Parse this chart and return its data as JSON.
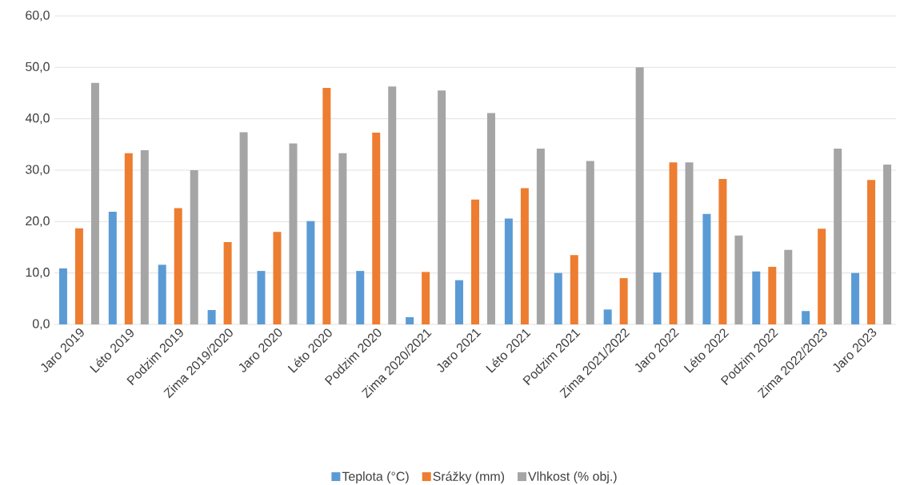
{
  "chart_data": {
    "type": "bar",
    "categories": [
      "Jaro 2019",
      "Léto 2019",
      "Podzim 2019",
      "Zima 2019/2020",
      "Jaro 2020",
      "Léto 2020",
      "Podzim 2020",
      "Zima 2020/2021",
      "Jaro 2021",
      "Léto 2021",
      "Podzim 2021",
      "Zima 2021/2022",
      "Jaro 2022",
      "Léto 2022",
      "Podzim 2022",
      "Zima 2022/2023",
      "Jaro 2023"
    ],
    "series": [
      {
        "name": "Teplota (°C)",
        "color": "#5b9bd5",
        "values": [
          10.9,
          21.9,
          11.6,
          2.8,
          10.4,
          20.1,
          10.4,
          1.4,
          8.6,
          20.6,
          10.0,
          2.9,
          10.1,
          21.5,
          10.3,
          2.6,
          10.0
        ]
      },
      {
        "name": "Srážky (mm)",
        "color": "#ed7d31",
        "values": [
          18.7,
          33.3,
          22.6,
          16.0,
          18.0,
          46.0,
          37.3,
          10.2,
          24.3,
          26.5,
          13.5,
          9.0,
          31.5,
          28.3,
          11.2,
          18.6,
          28.1
        ]
      },
      {
        "name": "Vlhkost (% obj.)",
        "color": "#a5a5a5",
        "values": [
          47.0,
          33.9,
          30.0,
          37.4,
          35.2,
          33.3,
          46.3,
          45.5,
          41.1,
          34.2,
          31.8,
          50.0,
          31.5,
          17.3,
          14.5,
          34.2,
          31.1
        ]
      }
    ],
    "ylim": [
      0,
      60
    ],
    "yticks": [
      {
        "value": 0,
        "label": "0,0"
      },
      {
        "value": 10,
        "label": "10,0"
      },
      {
        "value": 20,
        "label": "20,0"
      },
      {
        "value": 30,
        "label": "30,0"
      },
      {
        "value": 40,
        "label": "40,0"
      },
      {
        "value": 50,
        "label": "50,0"
      },
      {
        "value": 60,
        "label": "60,0"
      }
    ],
    "grid": "y",
    "legend": "bottom"
  }
}
